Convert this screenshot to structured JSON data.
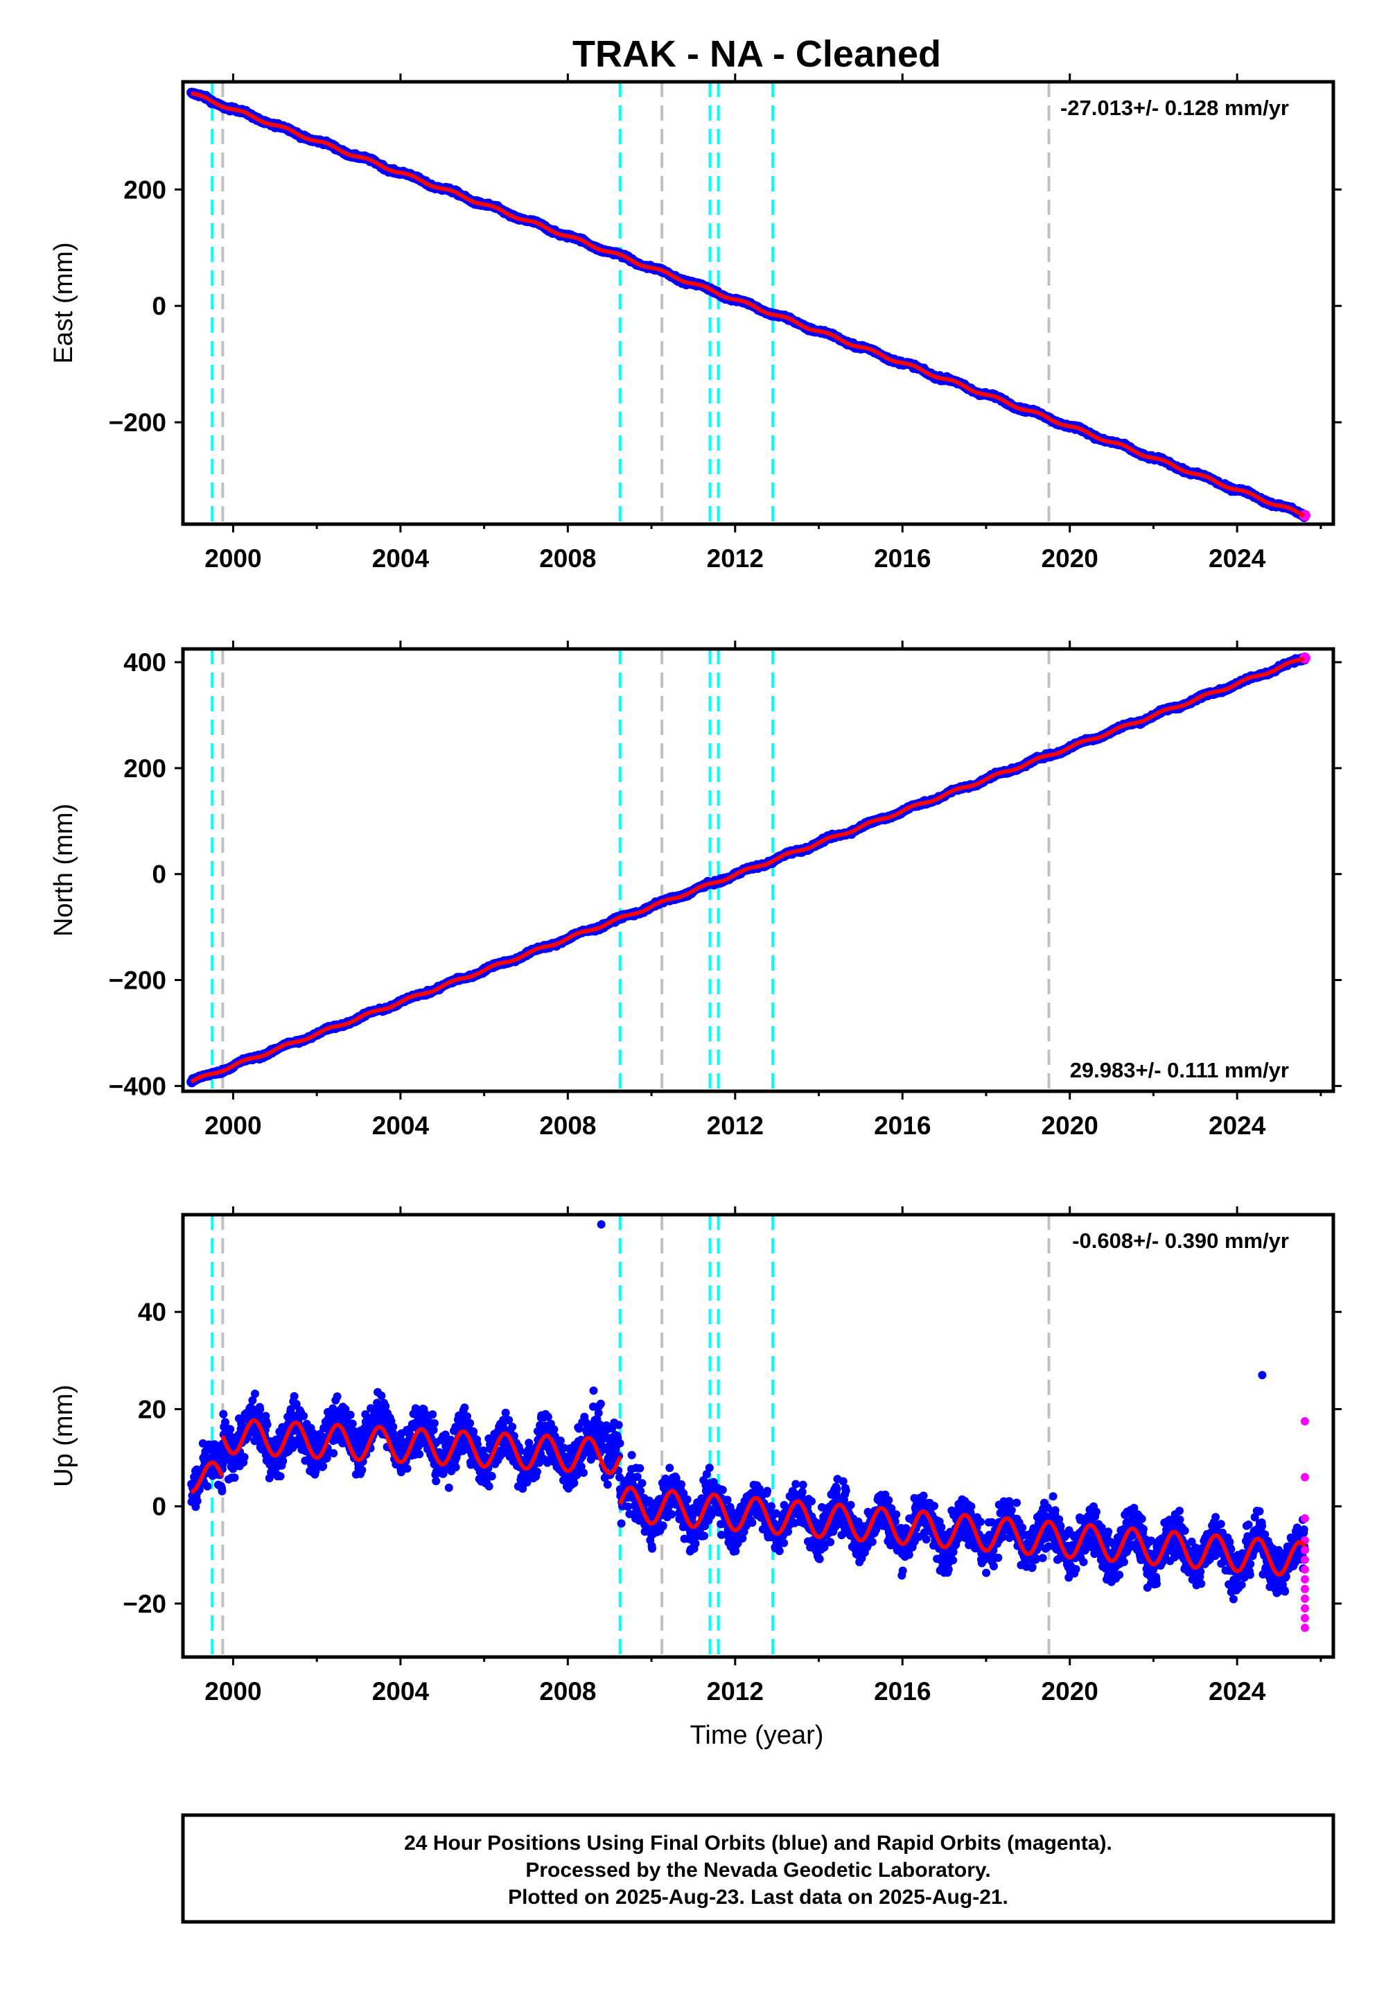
{
  "title": "TRAK  - NA - Cleaned",
  "xlabel": "Time (year)",
  "x_ticks": [
    "2000",
    "2004",
    "2008",
    "2012",
    "2016",
    "2020",
    "2024"
  ],
  "footer": {
    "line1": "24 Hour Positions Using Final Orbits (blue) and Rapid Orbits (magenta).",
    "line2": "Processed by the Nevada Geodetic Laboratory.",
    "line3": "Plotted on 2025-Aug-23. Last data on 2025-Aug-21."
  },
  "colors": {
    "final_orbits": "#0000ff",
    "rapid_orbits": "#ff00ff",
    "model": "#ff0000",
    "equipment_change": "#00ffff",
    "other_event": "#c0c0c0"
  },
  "chart_data": [
    {
      "type": "scatter",
      "panel": "east",
      "ylabel": "East (mm)",
      "rate": "-27.013+/- 0.128 mm/yr",
      "rate_position": "top-right",
      "xlim": [
        1998.8,
        2026.3
      ],
      "ylim": [
        -375,
        385
      ],
      "yticks": [
        -200,
        0,
        200
      ],
      "ytick_labels": [
        "−200",
        "0",
        "200"
      ],
      "start": {
        "x": 1999.0,
        "y": 365
      },
      "end": {
        "x": 2025.62,
        "y": -360
      },
      "events_cyan": [
        1999.5,
        2009.25,
        2011.4,
        2011.6,
        2012.9
      ],
      "events_gray": [
        1999.75,
        2010.25,
        2019.5
      ]
    },
    {
      "type": "scatter",
      "panel": "north",
      "ylabel": "North (mm)",
      "rate": "29.983+/- 0.111 mm/yr",
      "rate_position": "bottom-right",
      "xlim": [
        1998.8,
        2026.3
      ],
      "ylim": [
        -410,
        425
      ],
      "yticks": [
        -400,
        -200,
        0,
        200,
        400
      ],
      "ytick_labels": [
        "−400",
        "−200",
        "0",
        "200",
        "400"
      ],
      "start": {
        "x": 1999.0,
        "y": -392
      },
      "end": {
        "x": 2025.62,
        "y": 408
      },
      "events_cyan": [
        1999.5,
        2009.25,
        2011.4,
        2011.6,
        2012.9
      ],
      "events_gray": [
        1999.75,
        2010.25,
        2019.5
      ]
    },
    {
      "type": "scatter",
      "panel": "up",
      "ylabel": "Up (mm)",
      "rate": "-0.608+/- 0.390 mm/yr",
      "rate_position": "top-right",
      "xlim": [
        1998.8,
        2026.3
      ],
      "ylim": [
        -31,
        60
      ],
      "yticks": [
        -20,
        0,
        20,
        40
      ],
      "ytick_labels": [
        "−20",
        "0",
        "20",
        "40"
      ],
      "segments": [
        {
          "from": 1999.0,
          "to": 1999.75,
          "level": 6,
          "amp": 3
        },
        {
          "from": 1999.75,
          "to": 2009.25,
          "level": 14.5,
          "amp": 3.5,
          "trend": -0.45
        },
        {
          "from": 2009.25,
          "to": 2025.62,
          "level": 0.5,
          "amp": 3.5,
          "trend": -0.7
        }
      ],
      "outliers": [
        {
          "x": 2008.8,
          "y": 58
        },
        {
          "x": 2024.6,
          "y": 27
        }
      ],
      "rapid_points_y": [
        17.5,
        6,
        -2.5,
        -7,
        -9,
        -11,
        -13,
        -15,
        -17,
        -19,
        -21,
        -23,
        -25
      ],
      "events_cyan": [
        1999.5,
        2009.25,
        2011.4,
        2011.6,
        2012.9
      ],
      "events_gray": [
        1999.75,
        2010.25,
        2019.5
      ]
    }
  ]
}
